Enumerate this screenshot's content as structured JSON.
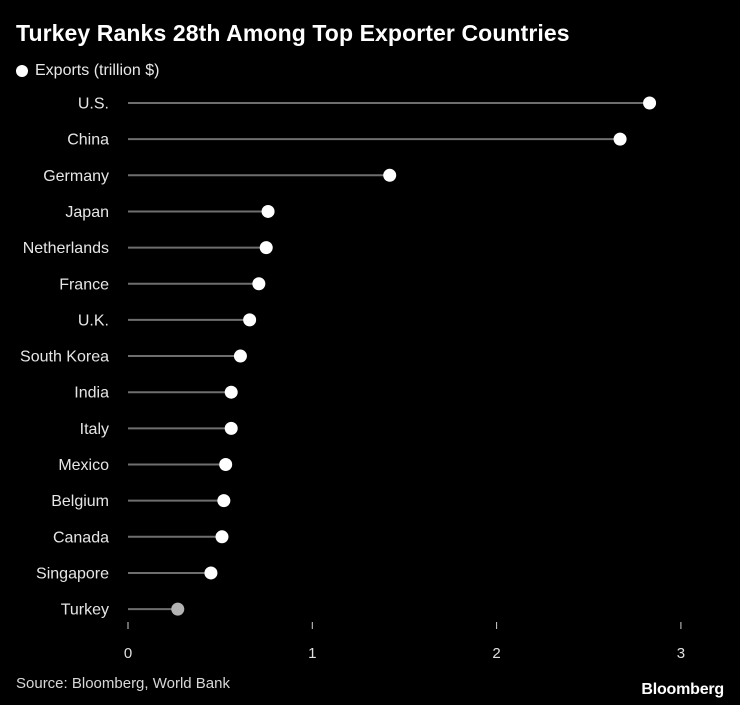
{
  "chart_data": {
    "type": "lollipop",
    "title": "Turkey Ranks 28th Among Top Exporter Countries",
    "legend": "Exports (trillion $)",
    "categories": [
      "U.S.",
      "China",
      "Germany",
      "Japan",
      "Netherlands",
      "France",
      "U.K.",
      "South Korea",
      "India",
      "Italy",
      "Mexico",
      "Belgium",
      "Canada",
      "Singapore",
      "Turkey"
    ],
    "values": [
      2.83,
      2.67,
      1.42,
      0.76,
      0.75,
      0.71,
      0.66,
      0.61,
      0.56,
      0.56,
      0.53,
      0.52,
      0.51,
      0.45,
      0.27
    ],
    "highlight": "Turkey",
    "xticks": [
      0,
      1,
      2,
      3
    ],
    "xlim": [
      0,
      3.2
    ],
    "colors": {
      "point": "#ffffff",
      "highlight": "#b3b3b3",
      "stem": "#6e6e6e",
      "axis": "#d0d0d0",
      "background": "#000000"
    }
  },
  "source": "Source: Bloomberg, World Bank",
  "brand": "Bloomberg"
}
